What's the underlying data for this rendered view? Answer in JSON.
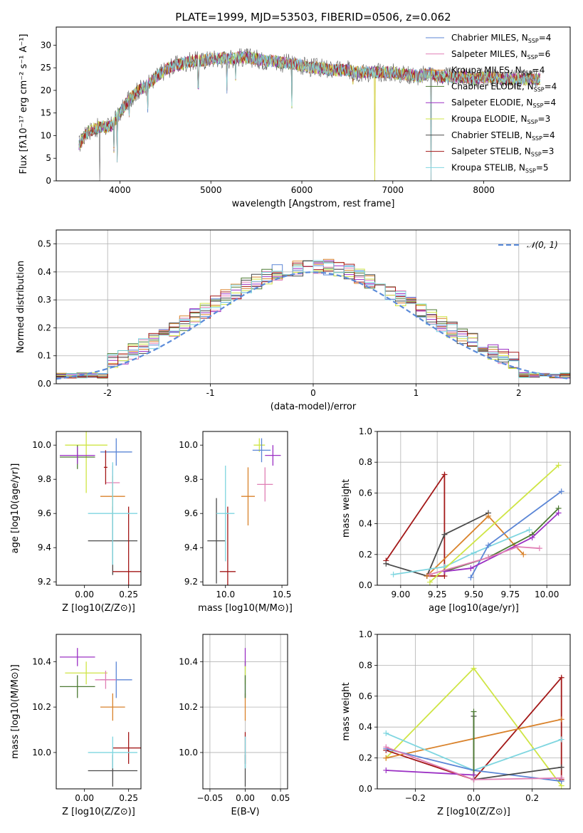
{
  "figure": {
    "title": "PLATE=1999, MJD=53503, FIBERID=0506, z=0.062"
  },
  "colors": {
    "chabrier_miles": "#5b86d6",
    "salpeter_miles": "#d98a1e",
    "kroupa_miles": "#d9822b",
    "chabrier_elodie": "#4d7a33",
    "salpeter_elodie": "#9b30c4",
    "kroupa_elodie": "#cfe545",
    "chabrier_stelib": "#4a4a4a",
    "salpeter_stelib": "#a31818",
    "kroupa_stelib": "#7fd6e0",
    "pink": "#e07fb5"
  },
  "chart_data": [
    {
      "id": "spectrum",
      "type": "line",
      "title": "PLATE=1999, MJD=53503, FIBERID=0506, z=0.062",
      "xlabel": "wavelength [Angstrom, rest frame]",
      "ylabel": "Flux [fλ10⁻¹⁷ erg cm⁻² s⁻¹ A⁻¹]",
      "xlim": [
        3300,
        8950
      ],
      "ylim": [
        0,
        34
      ],
      "xticks": [
        4000,
        5000,
        6000,
        7000,
        8000
      ],
      "yticks": [
        0,
        5,
        10,
        15,
        20,
        25,
        30
      ],
      "grid": false,
      "legend_position": "top-right",
      "legend": [
        {
          "label": "Chabrier MILES, N",
          "sub": "SSP",
          "tail": "=4",
          "color": "#5b86d6"
        },
        {
          "label": "Salpeter MILES, N",
          "sub": "SSP",
          "tail": "=6",
          "color": "#e07fb5"
        },
        {
          "label": "Kroupa MILES, N",
          "sub": "SSP",
          "tail": "=4",
          "color": "#d9822b"
        },
        {
          "label": "Chabrier ELODIE, N",
          "sub": "SSP",
          "tail": "=4",
          "color": "#4d7a33"
        },
        {
          "label": "Salpeter ELODIE, N",
          "sub": "SSP",
          "tail": "=4",
          "color": "#9b30c4"
        },
        {
          "label": "Kroupa ELODIE, N",
          "sub": "SSP",
          "tail": "=3",
          "color": "#cfe545"
        },
        {
          "label": "Chabrier STELIB, N",
          "sub": "SSP",
          "tail": "=4",
          "color": "#4a4a4a"
        },
        {
          "label": "Salpeter STELIB, N",
          "sub": "SSP",
          "tail": "=3",
          "color": "#a31818"
        },
        {
          "label": "Kroupa STELIB, N",
          "sub": "SSP",
          "tail": "=5",
          "color": "#7fd6e0"
        }
      ],
      "continuum": [
        [
          3550,
          8
        ],
        [
          3650,
          11
        ],
        [
          3800,
          12
        ],
        [
          3900,
          12
        ],
        [
          4000,
          15
        ],
        [
          4100,
          18
        ],
        [
          4200,
          20
        ],
        [
          4300,
          21
        ],
        [
          4400,
          23
        ],
        [
          4500,
          24.5
        ],
        [
          4600,
          25.5
        ],
        [
          4700,
          26
        ],
        [
          4800,
          26.5
        ],
        [
          4900,
          26.5
        ],
        [
          5000,
          27
        ],
        [
          5100,
          27
        ],
        [
          5200,
          27
        ],
        [
          5300,
          27.3
        ],
        [
          5400,
          27.3
        ],
        [
          5500,
          27
        ],
        [
          5600,
          26.5
        ],
        [
          5700,
          26.5
        ],
        [
          5800,
          26
        ],
        [
          5900,
          26
        ],
        [
          6000,
          25.5
        ],
        [
          6100,
          25
        ],
        [
          6200,
          25
        ],
        [
          6300,
          24.5
        ],
        [
          6400,
          24.5
        ],
        [
          6500,
          24.5
        ],
        [
          6600,
          24
        ],
        [
          6700,
          24
        ],
        [
          6800,
          24
        ],
        [
          6900,
          24
        ],
        [
          7000,
          24
        ],
        [
          7100,
          23.5
        ],
        [
          7200,
          23.5
        ],
        [
          7300,
          23
        ],
        [
          7400,
          24
        ],
        [
          7500,
          23
        ],
        [
          7600,
          23
        ],
        [
          7700,
          23
        ],
        [
          7800,
          23
        ],
        [
          7900,
          22.5
        ],
        [
          8000,
          23
        ],
        [
          8100,
          23
        ],
        [
          8200,
          22.5
        ],
        [
          8300,
          22.5
        ],
        [
          8400,
          22.5
        ],
        [
          8500,
          22.5
        ],
        [
          8600,
          22.5
        ]
      ],
      "absorption": [
        [
          3780,
          0
        ],
        [
          3934,
          6
        ],
        [
          3969,
          4
        ],
        [
          4102,
          14
        ],
        [
          4304,
          15
        ],
        [
          4861,
          20
        ],
        [
          5175,
          19
        ],
        [
          5270,
          22
        ],
        [
          5890,
          16
        ],
        [
          6563,
          21
        ],
        [
          6800,
          0
        ],
        [
          6870,
          22
        ],
        [
          7420,
          0
        ]
      ]
    },
    {
      "id": "residuals",
      "type": "line",
      "xlabel": "(data-model)/error",
      "ylabel": "Normed distribution",
      "xlim": [
        -2.5,
        2.5
      ],
      "ylim": [
        0,
        0.55
      ],
      "xticks": [
        -2,
        -1,
        0,
        1,
        2
      ],
      "yticks": [
        0.0,
        0.1,
        0.2,
        0.3,
        0.4,
        0.5
      ],
      "grid": true,
      "legend_position": "top-right",
      "legend": [
        {
          "label": "𝒩(0, 1)",
          "color": "#5b8bd9"
        }
      ],
      "bin_width": 0.1,
      "bin_start": -2.5
    },
    {
      "id": "age_vs_Z",
      "type": "scatter",
      "xlabel": "Z [log10(Z/Z⊙)]",
      "ylabel": "age  [log10(age/yr)]",
      "xlim": [
        -0.16,
        0.32
      ],
      "ylim": [
        9.18,
        10.08
      ],
      "xticks": [
        0.0,
        0.25
      ],
      "xticklabels": [
        "0.00",
        "0.25"
      ],
      "yticks": [
        9.2,
        9.4,
        9.6,
        9.8,
        10.0
      ],
      "grid": false,
      "points": [
        {
          "x": 0.16,
          "y": 9.44,
          "xerr": 0.14,
          "yerr": 0.2,
          "color": "#4a4a4a"
        },
        {
          "x": 0.25,
          "y": 9.26,
          "xerr": 0.09,
          "yerr": 0.38,
          "color": "#a31818"
        },
        {
          "x": 0.18,
          "y": 9.96,
          "xerr": 0.09,
          "yerr": 0.08,
          "color": "#5b86d6"
        },
        {
          "x": 0.01,
          "y": 10.0,
          "xerr": 0.12,
          "yerr": 0.28,
          "color": "#cfe545"
        },
        {
          "x": -0.04,
          "y": 9.93,
          "xerr": 0.1,
          "yerr": 0.07,
          "color": "#4d7a33"
        },
        {
          "x": -0.04,
          "y": 9.94,
          "xerr": 0.1,
          "yerr": 0.05,
          "color": "#9b30c4"
        },
        {
          "x": 0.16,
          "y": 9.78,
          "xerr": 0.04,
          "yerr": 0.1,
          "color": "#e07fb5"
        },
        {
          "x": 0.16,
          "y": 9.7,
          "xerr": 0.07,
          "yerr": 0.12,
          "color": "#d9822b"
        },
        {
          "x": 0.16,
          "y": 9.6,
          "xerr": 0.14,
          "yerr": 0.3,
          "color": "#7fd6e0"
        },
        {
          "x": 0.12,
          "y": 9.87,
          "xerr": 0.01,
          "yerr": 0.1,
          "color": "#a31818"
        }
      ]
    },
    {
      "id": "age_vs_mass",
      "type": "scatter",
      "xlabel": "mass [log10(M/M⊙)]",
      "ylabel": "",
      "xlim": [
        9.8,
        10.55
      ],
      "ylim": [
        9.18,
        10.08
      ],
      "xticks": [
        10.0,
        10.5
      ],
      "xticklabels": [
        "10.0",
        "10.5"
      ],
      "yticks": [
        9.2,
        9.4,
        9.6,
        9.8,
        10.0
      ],
      "grid": false,
      "points": [
        {
          "x": 9.92,
          "y": 9.44,
          "xerr": 0.08,
          "yerr": 0.25,
          "color": "#4a4a4a"
        },
        {
          "x": 10.02,
          "y": 9.26,
          "xerr": 0.07,
          "yerr": 0.38,
          "color": "#a31818"
        },
        {
          "x": 10.3,
          "y": 10.0,
          "xerr": 0.05,
          "yerr": 0.04,
          "color": "#cfe545"
        },
        {
          "x": 10.32,
          "y": 9.97,
          "xerr": 0.08,
          "yerr": 0.07,
          "color": "#5b86d6"
        },
        {
          "x": 10.42,
          "y": 9.94,
          "xerr": 0.07,
          "yerr": 0.06,
          "color": "#9b30c4"
        },
        {
          "x": 10.35,
          "y": 9.77,
          "xerr": 0.07,
          "yerr": 0.1,
          "color": "#e07fb5"
        },
        {
          "x": 10.2,
          "y": 9.7,
          "xerr": 0.06,
          "yerr": 0.17,
          "color": "#d9822b"
        },
        {
          "x": 10.0,
          "y": 9.6,
          "xerr": 0.08,
          "yerr": 0.28,
          "color": "#7fd6e0"
        }
      ]
    },
    {
      "id": "weight_vs_age",
      "type": "line",
      "xlabel": "age  [log10(age/yr)]",
      "ylabel": "mass weight",
      "xlim": [
        8.84,
        10.16
      ],
      "ylim": [
        0,
        1.0
      ],
      "xticks": [
        9.0,
        9.25,
        9.5,
        9.75,
        10.0
      ],
      "xticklabels": [
        "9.00",
        "9.25",
        "9.50",
        "9.75",
        "10.00"
      ],
      "yticks": [
        0.0,
        0.2,
        0.4,
        0.6,
        0.8,
        1.0
      ],
      "grid": true,
      "series": [
        {
          "color": "#a31818",
          "x": [
            8.9,
            9.3,
            9.3,
            9.18
          ],
          "values": [
            0.16,
            0.72,
            0.06,
            0.06
          ]
        },
        {
          "color": "#4a4a4a",
          "x": [
            8.9,
            9.18,
            9.3,
            9.6
          ],
          "values": [
            0.14,
            0.06,
            0.33,
            0.47
          ]
        },
        {
          "color": "#d9822b",
          "x": [
            9.18,
            9.6,
            9.78,
            9.84
          ],
          "values": [
            0.06,
            0.45,
            0.26,
            0.2
          ]
        },
        {
          "color": "#7fd6e0",
          "x": [
            8.95,
            9.3,
            9.5,
            9.88
          ],
          "values": [
            0.07,
            0.12,
            0.21,
            0.36
          ]
        },
        {
          "color": "#cfe545",
          "x": [
            9.2,
            10.08
          ],
          "values": [
            0.02,
            0.78
          ]
        },
        {
          "color": "#5b86d6",
          "x": [
            9.48,
            9.6,
            10.1
          ],
          "values": [
            0.05,
            0.26,
            0.61
          ]
        },
        {
          "color": "#4d7a33",
          "x": [
            9.3,
            9.6,
            9.9,
            10.08
          ],
          "values": [
            0.09,
            0.18,
            0.33,
            0.5
          ]
        },
        {
          "color": "#9b30c4",
          "x": [
            9.3,
            9.48,
            9.9,
            10.08
          ],
          "values": [
            0.09,
            0.11,
            0.31,
            0.47
          ]
        },
        {
          "color": "#e07fb5",
          "x": [
            9.2,
            9.6,
            9.8,
            9.95
          ],
          "values": [
            0.07,
            0.18,
            0.25,
            0.24
          ]
        }
      ]
    },
    {
      "id": "mass_vs_Z",
      "type": "scatter",
      "xlabel": "Z [log10(Z/Z⊙)]",
      "ylabel": "mass [log10(M/M⊙)]",
      "xlim": [
        -0.16,
        0.32
      ],
      "ylim": [
        9.84,
        10.52
      ],
      "xticks": [
        0.0,
        0.25
      ],
      "xticklabels": [
        "0.00",
        "0.25"
      ],
      "yticks": [
        10.0,
        10.2,
        10.4
      ],
      "grid": false,
      "points": [
        {
          "x": 0.16,
          "y": 9.92,
          "xerr": 0.14,
          "yerr": 0.07,
          "color": "#4a4a4a"
        },
        {
          "x": 0.25,
          "y": 10.02,
          "xerr": 0.09,
          "yerr": 0.07,
          "color": "#a31818"
        },
        {
          "x": 0.16,
          "y": 10.0,
          "xerr": 0.14,
          "yerr": 0.07,
          "color": "#7fd6e0"
        },
        {
          "x": 0.18,
          "y": 10.32,
          "xerr": 0.09,
          "yerr": 0.08,
          "color": "#5b86d6"
        },
        {
          "x": 0.01,
          "y": 10.35,
          "xerr": 0.12,
          "yerr": 0.05,
          "color": "#cfe545"
        },
        {
          "x": -0.04,
          "y": 10.29,
          "xerr": 0.1,
          "yerr": 0.05,
          "color": "#4d7a33"
        },
        {
          "x": -0.04,
          "y": 10.42,
          "xerr": 0.1,
          "yerr": 0.04,
          "color": "#9b30c4"
        },
        {
          "x": 0.12,
          "y": 10.32,
          "xerr": 0.06,
          "yerr": 0.04,
          "color": "#e07fb5"
        },
        {
          "x": 0.16,
          "y": 10.2,
          "xerr": 0.07,
          "yerr": 0.06,
          "color": "#d9822b"
        }
      ]
    },
    {
      "id": "mass_vs_ebv",
      "type": "scatter",
      "xlabel": "E(B-V)",
      "ylabel": "",
      "xlim": [
        -0.06,
        0.06
      ],
      "ylim": [
        9.84,
        10.52
      ],
      "xticks": [
        -0.05,
        0.0,
        0.05
      ],
      "xticklabels": [
        "−0.05",
        "0.00",
        "0.05"
      ],
      "yticks": [
        10.0,
        10.2,
        10.4
      ],
      "grid": true,
      "points": [
        {
          "x": 0.0,
          "y": 9.92,
          "xerr": 0.0,
          "yerr": 0.07,
          "color": "#4a4a4a"
        },
        {
          "x": 0.0,
          "y": 10.02,
          "xerr": 0.0,
          "yerr": 0.07,
          "color": "#a31818"
        },
        {
          "x": 0.0,
          "y": 10.0,
          "xerr": 0.0,
          "yerr": 0.07,
          "color": "#7fd6e0"
        },
        {
          "x": 0.0,
          "y": 10.2,
          "xerr": 0.0,
          "yerr": 0.06,
          "color": "#d9822b"
        },
        {
          "x": 0.0,
          "y": 10.32,
          "xerr": 0.0,
          "yerr": 0.08,
          "color": "#5b86d6"
        },
        {
          "x": 0.0,
          "y": 10.35,
          "xerr": 0.0,
          "yerr": 0.05,
          "color": "#cfe545"
        },
        {
          "x": 0.0,
          "y": 10.29,
          "xerr": 0.0,
          "yerr": 0.05,
          "color": "#4d7a33"
        },
        {
          "x": 0.0,
          "y": 10.42,
          "xerr": 0.0,
          "yerr": 0.04,
          "color": "#9b30c4"
        }
      ]
    },
    {
      "id": "weight_vs_Z",
      "type": "line",
      "xlabel": "Z [log10(Z/Z⊙)]",
      "ylabel": "mass weight",
      "xlim": [
        -0.33,
        0.33
      ],
      "ylim": [
        0,
        1.0
      ],
      "xticks": [
        -0.2,
        0.0,
        0.2
      ],
      "xticklabels": [
        "−0.2",
        "0.0",
        "0.2"
      ],
      "yticks": [
        0.0,
        0.2,
        0.4,
        0.6,
        0.8,
        1.0
      ],
      "grid": true,
      "series": [
        {
          "color": "#cfe545",
          "x": [
            -0.3,
            0.0,
            0.3
          ],
          "values": [
            0.2,
            0.78,
            0.02
          ]
        },
        {
          "color": "#a31818",
          "x": [
            -0.3,
            0.0,
            0.3,
            0.3
          ],
          "values": [
            0.25,
            0.06,
            0.72,
            0.06
          ]
        },
        {
          "color": "#d9822b",
          "x": [
            -0.3,
            0.3
          ],
          "values": [
            0.2,
            0.45
          ]
        },
        {
          "color": "#7fd6e0",
          "x": [
            -0.3,
            0.0,
            0.3
          ],
          "values": [
            0.36,
            0.12,
            0.32
          ]
        },
        {
          "color": "#5b86d6",
          "x": [
            -0.3,
            0.0,
            0.3
          ],
          "values": [
            0.26,
            0.12,
            0.05
          ]
        },
        {
          "color": "#4a4a4a",
          "x": [
            0.0,
            0.0,
            0.3
          ],
          "values": [
            0.47,
            0.06,
            0.14
          ]
        },
        {
          "color": "#4d7a33",
          "x": [
            0.0,
            0.0
          ],
          "values": [
            0.5,
            0.09
          ]
        },
        {
          "color": "#9b30c4",
          "x": [
            -0.3,
            0.0
          ],
          "values": [
            0.12,
            0.09
          ]
        },
        {
          "color": "#e07fb5",
          "x": [
            -0.3,
            0.0,
            0.3
          ],
          "values": [
            0.27,
            0.06,
            0.07
          ]
        }
      ]
    }
  ]
}
